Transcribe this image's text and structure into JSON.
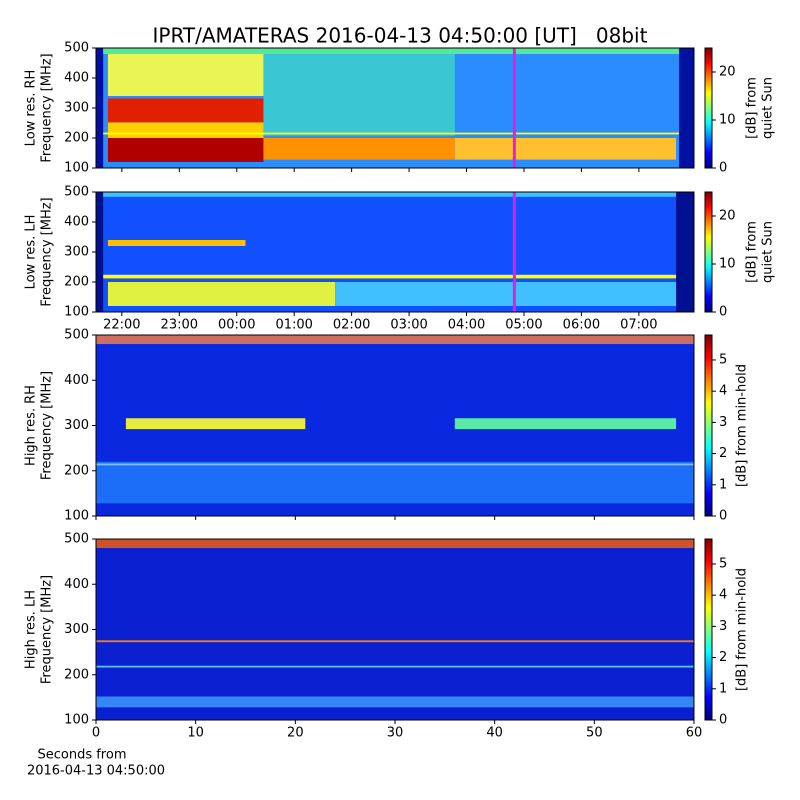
{
  "title": "IPRT/AMATERAS 2016-04-13 04:50:00 [UT]   08bit",
  "chart_data": [
    {
      "type": "heatmap",
      "ylabel": [
        "Low res. RH",
        "Frequency [MHz]"
      ],
      "xlim": [
        21.55,
        31.96
      ],
      "xticks": [
        22,
        23,
        24,
        25,
        26,
        27,
        28,
        29,
        30,
        31
      ],
      "xticklabels": false,
      "ylim": [
        100,
        500
      ],
      "yticks": [
        100,
        200,
        300,
        400,
        500
      ],
      "clim": [
        0,
        25
      ],
      "cticks": [
        0,
        10,
        20
      ],
      "clabel": [
        "[dB] from",
        "quiet Sun"
      ],
      "marker": {
        "x": 28.833,
        "color": "#e020e0"
      }
    },
    {
      "type": "heatmap",
      "ylabel": [
        "Low res. LH",
        "Frequency [MHz]"
      ],
      "xlim": [
        21.55,
        31.96
      ],
      "xticks": [
        {
          "value": 22,
          "label": "22:00"
        },
        {
          "value": 23,
          "label": "23:00"
        },
        {
          "value": 24,
          "label": "00:00"
        },
        {
          "value": 25,
          "label": "01:00"
        },
        {
          "value": 26,
          "label": "02:00"
        },
        {
          "value": 27,
          "label": "03:00"
        },
        {
          "value": 28,
          "label": "04:00"
        },
        {
          "value": 29,
          "label": "05:00"
        },
        {
          "value": 30,
          "label": "06:00"
        },
        {
          "value": 31,
          "label": "07:00"
        }
      ],
      "xticklabels": true,
      "ylim": [
        100,
        500
      ],
      "yticks": [
        100,
        200,
        300,
        400,
        500
      ],
      "clim": [
        0,
        25
      ],
      "cticks": [
        0,
        10,
        20
      ],
      "clabel": [
        "[dB] from",
        "quiet Sun"
      ],
      "marker": {
        "x": 28.833,
        "color": "#e020e0"
      }
    },
    {
      "type": "heatmap",
      "ylabel": [
        "High res. RH",
        "Frequency [MHz]"
      ],
      "xlim": [
        0,
        60
      ],
      "xticks": [
        0,
        10,
        20,
        30,
        40,
        50,
        60
      ],
      "xticklabels": false,
      "ylim": [
        100,
        500
      ],
      "yticks": [
        100,
        200,
        300,
        400,
        500
      ],
      "clim": [
        0,
        5.8
      ],
      "cticks": [
        0,
        1,
        2,
        3,
        4,
        5
      ],
      "clabel": [
        "[dB] from min-hold"
      ]
    },
    {
      "type": "heatmap",
      "ylabel": [
        "High res. LH",
        "Frequency [MHz]"
      ],
      "xlim": [
        0,
        60
      ],
      "xticks": [
        0,
        10,
        20,
        30,
        40,
        50,
        60
      ],
      "xticklabels": true,
      "xlabel": [
        "Seconds from",
        "2016-04-13 04:50:00"
      ],
      "ylim": [
        100,
        500
      ],
      "yticks": [
        100,
        200,
        300,
        400,
        500
      ],
      "clim": [
        0,
        5.8
      ],
      "cticks": [
        0,
        1,
        2,
        3,
        4,
        5
      ],
      "clabel": [
        "[dB] from min-hold"
      ]
    }
  ]
}
